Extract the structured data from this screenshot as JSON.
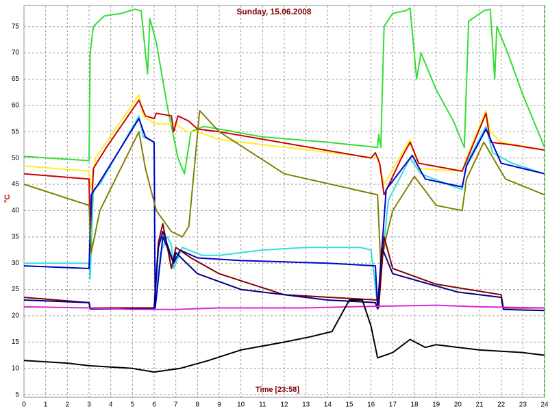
{
  "chart_data": {
    "type": "line",
    "title": "Sunday, 15.06.2008",
    "x_label": "Time [23:58]",
    "y_label": "°C",
    "xlim": [
      0,
      24
    ],
    "xticks": [
      0,
      1,
      2,
      3,
      4,
      5,
      6,
      7,
      8,
      9,
      10,
      11,
      12,
      13,
      14,
      15,
      16,
      17,
      18,
      19,
      20,
      21,
      22,
      23,
      24
    ],
    "ylim": [
      4.5,
      79
    ],
    "yticks": [
      5,
      10,
      15,
      20,
      25,
      30,
      35,
      40,
      45,
      50,
      55,
      60,
      65,
      70,
      75
    ],
    "grid": true,
    "series": [
      {
        "color": "#33dd33",
        "x": [
          0,
          3,
          3.05,
          3.2,
          3.7,
          4.5,
          5.1,
          5.4,
          5.6,
          5.7,
          5.8,
          6.1,
          6.6,
          7.1,
          7.4,
          7.7,
          8.3,
          9,
          11,
          14,
          16.3,
          16.35,
          16.45,
          16.6,
          17,
          17.6,
          17.8,
          18.1,
          18.3,
          19,
          19.8,
          20.3,
          20.5,
          21.2,
          21.5,
          21.7,
          21.8,
          22.3,
          23,
          23.8,
          24
        ],
        "values": [
          50.3,
          49.5,
          70,
          75,
          77,
          77.5,
          78.3,
          78,
          70,
          66,
          76.5,
          72,
          60,
          50,
          47,
          55,
          56,
          55.5,
          54,
          53,
          52,
          54.5,
          52,
          75,
          77.5,
          78,
          78.5,
          65,
          70,
          63,
          57,
          52,
          76,
          78,
          78.3,
          65,
          75,
          70,
          62,
          54,
          52
        ]
      },
      {
        "color": "#ffee22",
        "x": [
          0,
          3,
          3.1,
          3.3,
          5.3,
          5.5,
          6,
          7,
          7.5,
          8,
          9,
          16.3,
          16.6,
          17.8,
          18.2,
          20.2,
          20.4,
          21.3,
          21.5,
          22,
          24
        ],
        "values": [
          48.5,
          47.5,
          44,
          50,
          62,
          58,
          56.5,
          56.5,
          55,
          55,
          53.5,
          50,
          45,
          53.5,
          48,
          47.5,
          50,
          59,
          55,
          53,
          51.5
        ]
      },
      {
        "color": "#cc0000",
        "x": [
          0,
          3,
          3.05,
          3.2,
          3.8,
          5.3,
          5.6,
          6,
          6.1,
          6.8,
          6.9,
          7.1,
          7.6,
          8,
          9,
          16,
          16.2,
          16.4,
          16.6,
          17.4,
          17.8,
          18.2,
          20.2,
          20.4,
          21.3,
          21.5,
          22.5,
          24
        ],
        "values": [
          47,
          46,
          34,
          48,
          52,
          61,
          58,
          57.5,
          58.5,
          58,
          55,
          58,
          57,
          55.5,
          55,
          50,
          51,
          49,
          43,
          50,
          53,
          49,
          47.5,
          49.5,
          58.5,
          53,
          52.5,
          51.5
        ]
      },
      {
        "color": "#33dddd",
        "x": [
          0,
          3,
          3.05,
          3.2,
          3.5,
          5.3,
          5.5,
          6,
          6.05,
          6.3,
          6.6,
          6.8,
          6.9,
          7.3,
          8.2,
          9,
          11,
          13,
          15.5,
          16,
          16.3,
          16.5,
          16.8,
          17.8,
          18.3,
          19.5,
          20.2,
          20.4,
          21.3,
          21.6,
          22.5,
          24
        ],
        "values": [
          30,
          30,
          27,
          44,
          45,
          58,
          54,
          53,
          22,
          32,
          35,
          33.5,
          29,
          33,
          31.5,
          31.5,
          32.5,
          33,
          33,
          32.5,
          22,
          30,
          42,
          50,
          47,
          45,
          44,
          49,
          56,
          51,
          49,
          47
        ]
      },
      {
        "color": "#0000cc",
        "x": [
          0,
          3,
          3.1,
          3.5,
          5.3,
          5.6,
          6,
          6.05,
          6.4,
          6.9,
          7.2,
          8,
          10,
          14,
          16.2,
          16.3,
          16.7,
          17.9,
          18.5,
          20.2,
          20.4,
          21.3,
          22,
          24
        ],
        "values": [
          29.5,
          29,
          43,
          45.5,
          57.5,
          54,
          53,
          21.5,
          35,
          30,
          32.5,
          31,
          30.5,
          30,
          29.5,
          21.5,
          44,
          50.5,
          46,
          44.5,
          48.5,
          55.5,
          49,
          47
        ]
      },
      {
        "color": "#808000",
        "x": [
          0,
          3,
          3.1,
          3.5,
          5.3,
          5.6,
          6.1,
          6.8,
          7.3,
          7.6,
          8.1,
          9,
          12,
          16.3,
          16.45,
          16.7,
          17,
          18,
          19,
          20.2,
          20.4,
          21.2,
          22.2,
          24
        ],
        "values": [
          45,
          41,
          32,
          40,
          55,
          48,
          40,
          36,
          35,
          37,
          59,
          55,
          47,
          43,
          29.5,
          35,
          40,
          46.5,
          41,
          40,
          46,
          53,
          46,
          43
        ]
      },
      {
        "color": "#800000",
        "x": [
          0,
          3,
          3.05,
          6,
          6.2,
          6.4,
          6.8,
          7,
          7.7,
          9,
          12,
          16.3,
          16.35,
          16.6,
          17,
          19,
          22,
          22.1,
          24
        ],
        "values": [
          23.5,
          22.5,
          21.5,
          21.5,
          34,
          37.5,
          29,
          33,
          31,
          28,
          24,
          23,
          21.5,
          35,
          29,
          26,
          24,
          21.5,
          21.5
        ]
      },
      {
        "color": "#000080",
        "x": [
          0,
          3,
          3.05,
          6,
          6.2,
          6.4,
          6.9,
          7,
          8,
          10,
          14,
          16.2,
          16.3,
          16.5,
          17,
          20,
          22,
          22.1,
          24
        ],
        "values": [
          23,
          22.5,
          21.3,
          21.3,
          33,
          36,
          30,
          32,
          28,
          25,
          23,
          22.5,
          21.3,
          33,
          28,
          24.5,
          23.5,
          21.2,
          21
        ]
      },
      {
        "color": "#dd22dd",
        "x": [
          0,
          3,
          5,
          7,
          9,
          13,
          16,
          19,
          21,
          24
        ],
        "values": [
          21.7,
          21.5,
          21.2,
          21.2,
          21.5,
          21.5,
          21.8,
          22,
          21.7,
          21.5
        ]
      },
      {
        "color": "#000000",
        "x": [
          0,
          2,
          3,
          5,
          6,
          7.2,
          8.5,
          10,
          12,
          13.2,
          14.2,
          14.6,
          15,
          15.6,
          16,
          16.3,
          17,
          17.8,
          18.5,
          19,
          21,
          23,
          24
        ],
        "values": [
          11.5,
          11,
          10.5,
          10,
          9.3,
          10,
          11.5,
          13.5,
          15,
          16,
          17,
          20,
          23,
          23,
          18,
          12,
          13,
          15.5,
          14,
          14.5,
          13.5,
          13,
          12.5
        ]
      }
    ]
  }
}
